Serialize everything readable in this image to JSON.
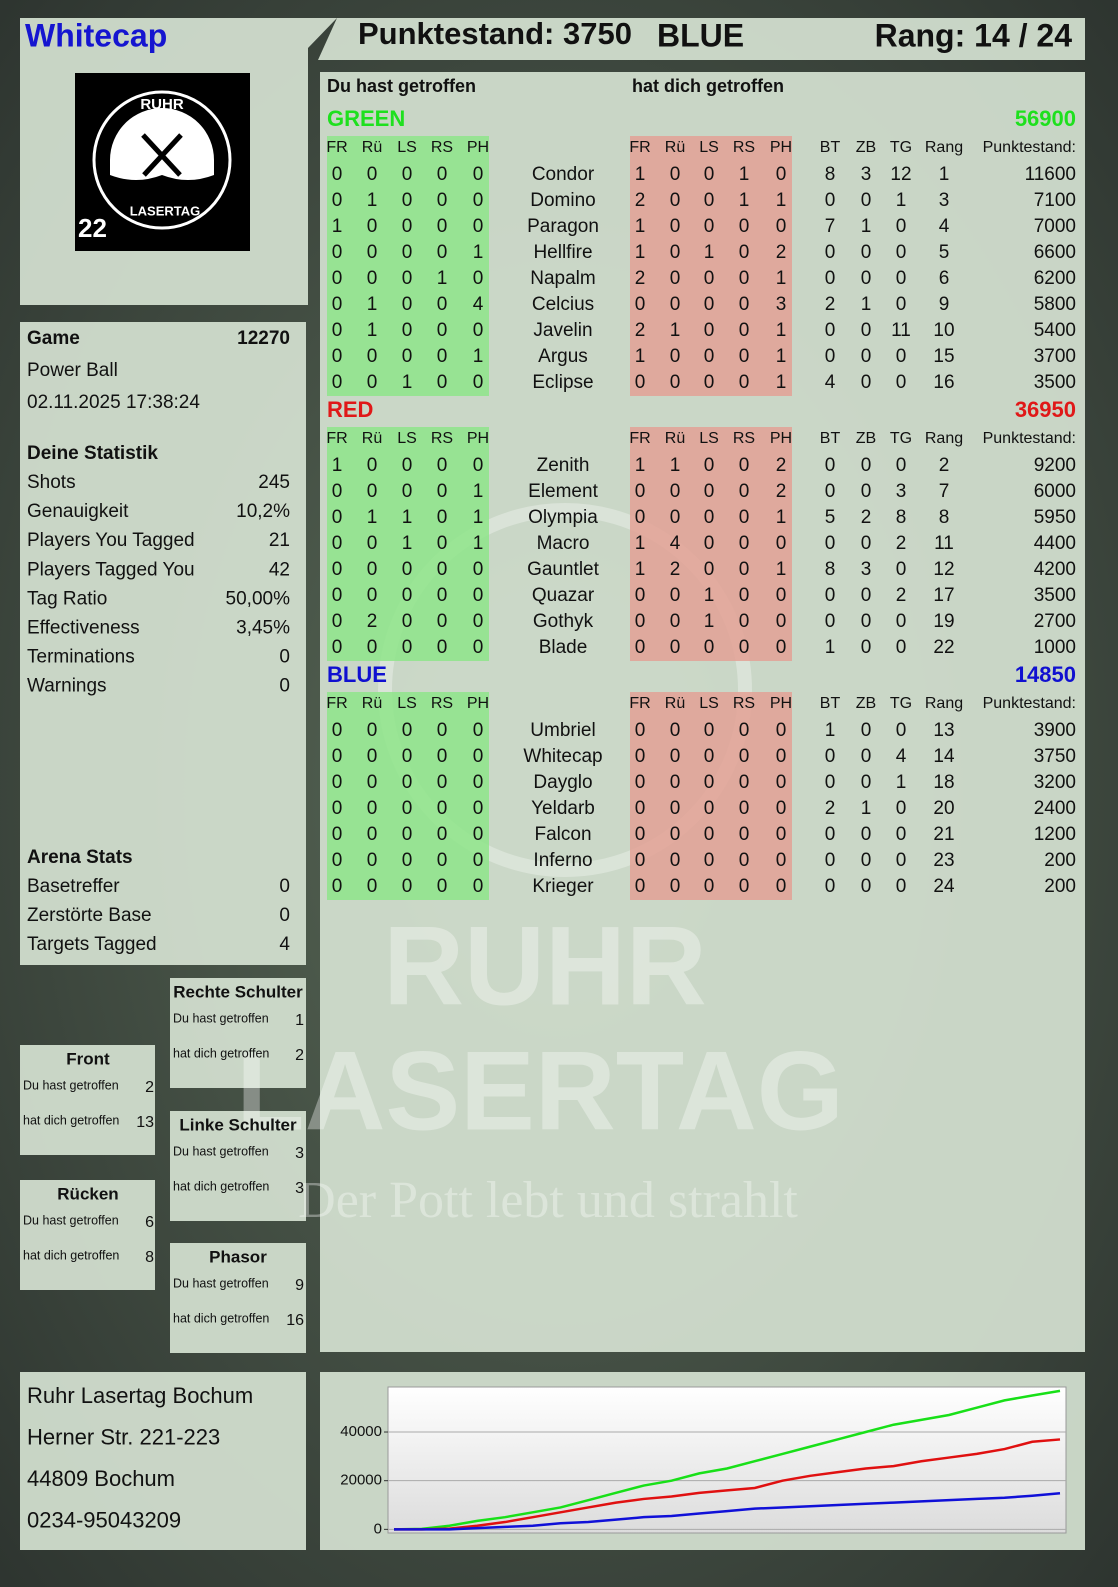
{
  "header": {
    "player": "Whitecap",
    "score": "Punktestand: 3750",
    "team": "BLUE",
    "rank": "Rang: 14 / 24"
  },
  "logo": {
    "top": "RUHR",
    "bottom": "LASERTAG",
    "number": "22"
  },
  "game": {
    "label": "Game",
    "id": "12270",
    "mode": "Power Ball",
    "datetime": "02.11.2025 17:38:24"
  },
  "stats": {
    "title": "Deine Statistik",
    "rows": [
      {
        "label": "Shots",
        "value": "245"
      },
      {
        "label": "Genauigkeit",
        "value": "10,2%"
      },
      {
        "label": "Players You Tagged",
        "value": "21"
      },
      {
        "label": "Players Tagged You",
        "value": "42"
      },
      {
        "label": "Tag Ratio",
        "value": "50,00%"
      },
      {
        "label": "Effectiveness",
        "value": "3,45%"
      },
      {
        "label": "Terminations",
        "value": "0"
      },
      {
        "label": "Warnings",
        "value": "0"
      }
    ]
  },
  "arena": {
    "title": "Arena Stats",
    "rows": [
      {
        "label": "Basetreffer",
        "value": "0"
      },
      {
        "label": "Zerstörte Base",
        "value": "0"
      },
      {
        "label": "Targets Tagged",
        "value": "4"
      }
    ]
  },
  "zones": [
    {
      "title": "Rechte Schulter",
      "rows": [
        {
          "label": "Du hast getroffen",
          "value": "1"
        },
        {
          "label": "hat dich getroffen",
          "value": "2"
        }
      ]
    },
    {
      "title": "Front",
      "rows": [
        {
          "label": "Du hast getroffen",
          "value": "2"
        },
        {
          "label": "hat dich getroffen",
          "value": "13"
        }
      ]
    },
    {
      "title": "Linke Schulter",
      "rows": [
        {
          "label": "Du hast getroffen",
          "value": "3"
        },
        {
          "label": "hat dich getroffen",
          "value": "3"
        }
      ]
    },
    {
      "title": "Rücken",
      "rows": [
        {
          "label": "Du hast getroffen",
          "value": "6"
        },
        {
          "label": "hat dich getroffen",
          "value": "8"
        }
      ]
    },
    {
      "title": "Phasor",
      "rows": [
        {
          "label": "Du hast getroffen",
          "value": "9"
        },
        {
          "label": "hat dich getroffen",
          "value": "16"
        }
      ]
    }
  ],
  "address": [
    "Ruhr Lasertag Bochum",
    "Herner Str. 221-223",
    "44809 Bochum",
    "0234-95043209"
  ],
  "watermark": {
    "line1": "RUHR",
    "line2": "LASERTAG",
    "slogan": "Der Pott lebt und strahlt"
  },
  "table": {
    "hit_heading": "Du hast getroffen",
    "got_heading": "hat dich getroffen",
    "hit_columns": [
      "FR",
      "Rü",
      "LS",
      "RS",
      "PH"
    ],
    "stat_columns": [
      "BT",
      "ZB",
      "TG",
      "Rang",
      "Punktestand:"
    ],
    "teams": [
      {
        "name": "GREEN",
        "total": 56900,
        "color": "#1ee01e",
        "players": [
          {
            "hit": [
              0,
              0,
              0,
              0,
              0
            ],
            "name": "Condor",
            "got": [
              1,
              0,
              0,
              1,
              0
            ],
            "stats": [
              8,
              3,
              12,
              1
            ],
            "score": 11600
          },
          {
            "hit": [
              0,
              1,
              0,
              0,
              0
            ],
            "name": "Domino",
            "got": [
              2,
              0,
              0,
              1,
              1
            ],
            "stats": [
              0,
              0,
              1,
              3
            ],
            "score": 7100
          },
          {
            "hit": [
              1,
              0,
              0,
              0,
              0
            ],
            "name": "Paragon",
            "got": [
              1,
              0,
              0,
              0,
              0
            ],
            "stats": [
              7,
              1,
              0,
              4
            ],
            "score": 7000
          },
          {
            "hit": [
              0,
              0,
              0,
              0,
              1
            ],
            "name": "Hellfire",
            "got": [
              1,
              0,
              1,
              0,
              2
            ],
            "stats": [
              0,
              0,
              0,
              5
            ],
            "score": 6600
          },
          {
            "hit": [
              0,
              0,
              0,
              1,
              0
            ],
            "name": "Napalm",
            "got": [
              2,
              0,
              0,
              0,
              1
            ],
            "stats": [
              0,
              0,
              0,
              6
            ],
            "score": 6200
          },
          {
            "hit": [
              0,
              1,
              0,
              0,
              4
            ],
            "name": "Celcius",
            "got": [
              0,
              0,
              0,
              0,
              3
            ],
            "stats": [
              2,
              1,
              0,
              9
            ],
            "score": 5800
          },
          {
            "hit": [
              0,
              1,
              0,
              0,
              0
            ],
            "name": "Javelin",
            "got": [
              2,
              1,
              0,
              0,
              1
            ],
            "stats": [
              0,
              0,
              11,
              10
            ],
            "score": 5400
          },
          {
            "hit": [
              0,
              0,
              0,
              0,
              1
            ],
            "name": "Argus",
            "got": [
              1,
              0,
              0,
              0,
              1
            ],
            "stats": [
              0,
              0,
              0,
              15
            ],
            "score": 3700
          },
          {
            "hit": [
              0,
              0,
              1,
              0,
              0
            ],
            "name": "Eclipse",
            "got": [
              0,
              0,
              0,
              0,
              1
            ],
            "stats": [
              4,
              0,
              0,
              16
            ],
            "score": 3500
          }
        ]
      },
      {
        "name": "RED",
        "total": 36950,
        "color": "#e01818",
        "players": [
          {
            "hit": [
              1,
              0,
              0,
              0,
              0
            ],
            "name": "Zenith",
            "got": [
              1,
              1,
              0,
              0,
              2
            ],
            "stats": [
              0,
              0,
              0,
              2
            ],
            "score": 9200
          },
          {
            "hit": [
              0,
              0,
              0,
              0,
              1
            ],
            "name": "Element",
            "got": [
              0,
              0,
              0,
              0,
              2
            ],
            "stats": [
              0,
              0,
              3,
              7
            ],
            "score": 6000
          },
          {
            "hit": [
              0,
              1,
              1,
              0,
              1
            ],
            "name": "Olympia",
            "got": [
              0,
              0,
              0,
              0,
              1
            ],
            "stats": [
              5,
              2,
              8,
              8
            ],
            "score": 5950
          },
          {
            "hit": [
              0,
              0,
              1,
              0,
              1
            ],
            "name": "Macro",
            "got": [
              1,
              4,
              0,
              0,
              0
            ],
            "stats": [
              0,
              0,
              2,
              11
            ],
            "score": 4400
          },
          {
            "hit": [
              0,
              0,
              0,
              0,
              0
            ],
            "name": "Gauntlet",
            "got": [
              1,
              2,
              0,
              0,
              1
            ],
            "stats": [
              8,
              3,
              0,
              12
            ],
            "score": 4200
          },
          {
            "hit": [
              0,
              0,
              0,
              0,
              0
            ],
            "name": "Quazar",
            "got": [
              0,
              0,
              1,
              0,
              0
            ],
            "stats": [
              0,
              0,
              2,
              17
            ],
            "score": 3500
          },
          {
            "hit": [
              0,
              2,
              0,
              0,
              0
            ],
            "name": "Gothyk",
            "got": [
              0,
              0,
              1,
              0,
              0
            ],
            "stats": [
              0,
              0,
              0,
              19
            ],
            "score": 2700
          },
          {
            "hit": [
              0,
              0,
              0,
              0,
              0
            ],
            "name": "Blade",
            "got": [
              0,
              0,
              0,
              0,
              0
            ],
            "stats": [
              1,
              0,
              0,
              22
            ],
            "score": 1000
          }
        ]
      },
      {
        "name": "BLUE",
        "total": 14850,
        "color": "#1010d0",
        "players": [
          {
            "hit": [
              0,
              0,
              0,
              0,
              0
            ],
            "name": "Umbriel",
            "got": [
              0,
              0,
              0,
              0,
              0
            ],
            "stats": [
              1,
              0,
              0,
              13
            ],
            "score": 3900
          },
          {
            "hit": [
              0,
              0,
              0,
              0,
              0
            ],
            "name": "Whitecap",
            "got": [
              0,
              0,
              0,
              0,
              0
            ],
            "stats": [
              0,
              0,
              4,
              14
            ],
            "score": 3750
          },
          {
            "hit": [
              0,
              0,
              0,
              0,
              0
            ],
            "name": "Dayglo",
            "got": [
              0,
              0,
              0,
              0,
              0
            ],
            "stats": [
              0,
              0,
              1,
              18
            ],
            "score": 3200
          },
          {
            "hit": [
              0,
              0,
              0,
              0,
              0
            ],
            "name": "Yeldarb",
            "got": [
              0,
              0,
              0,
              0,
              0
            ],
            "stats": [
              2,
              1,
              0,
              20
            ],
            "score": 2400
          },
          {
            "hit": [
              0,
              0,
              0,
              0,
              0
            ],
            "name": "Falcon",
            "got": [
              0,
              0,
              0,
              0,
              0
            ],
            "stats": [
              0,
              0,
              0,
              21
            ],
            "score": 1200
          },
          {
            "hit": [
              0,
              0,
              0,
              0,
              0
            ],
            "name": "Inferno",
            "got": [
              0,
              0,
              0,
              0,
              0
            ],
            "stats": [
              0,
              0,
              0,
              23
            ],
            "score": 200
          },
          {
            "hit": [
              0,
              0,
              0,
              0,
              0
            ],
            "name": "Krieger",
            "got": [
              0,
              0,
              0,
              0,
              0
            ],
            "stats": [
              0,
              0,
              0,
              24
            ],
            "score": 200
          }
        ]
      }
    ]
  },
  "chart_data": {
    "type": "line",
    "categories": [
      null,
      null,
      null,
      null,
      null,
      null,
      null,
      null,
      null,
      null,
      null,
      null,
      null,
      null,
      null,
      null,
      null,
      null,
      null,
      null,
      null,
      null,
      null,
      null,
      null
    ],
    "ylim": [
      -1500,
      58500
    ],
    "yticks": [
      0,
      20000,
      40000
    ],
    "grid": true,
    "series": [
      {
        "color": "#18e018",
        "values": [
          0,
          200,
          1500,
          3500,
          5000,
          7000,
          9000,
          12000,
          15000,
          18000,
          20000,
          23000,
          25000,
          28000,
          31000,
          34000,
          37000,
          40000,
          43000,
          45000,
          47000,
          50000,
          53000,
          55000,
          56900
        ]
      },
      {
        "color": "#e01010",
        "values": [
          0,
          0,
          300,
          1500,
          3000,
          5000,
          7000,
          9000,
          11000,
          12500,
          13500,
          15000,
          16000,
          17000,
          20000,
          22000,
          23500,
          25000,
          26000,
          28000,
          29500,
          31000,
          33000,
          36000,
          36950
        ]
      },
      {
        "color": "#1010d8",
        "values": [
          0,
          0,
          0,
          500,
          1000,
          1500,
          2500,
          3000,
          4000,
          5000,
          5500,
          6500,
          7500,
          8500,
          9000,
          9500,
          10000,
          10500,
          11000,
          11500,
          12000,
          12500,
          13000,
          13800,
          14850
        ]
      }
    ]
  }
}
